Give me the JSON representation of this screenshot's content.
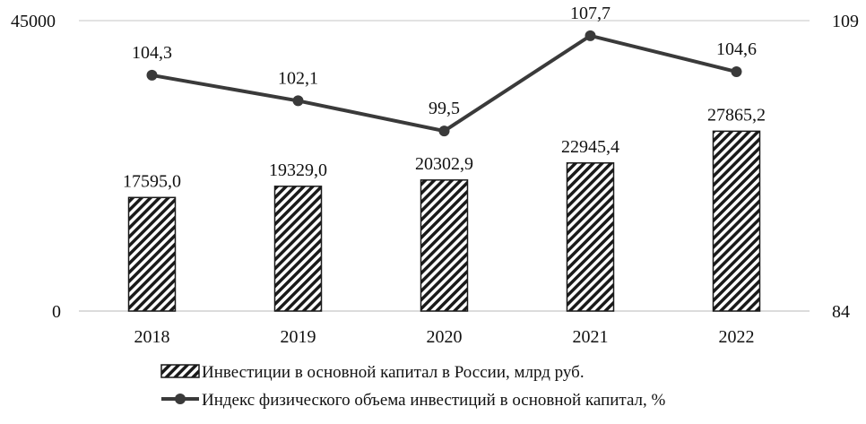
{
  "chart_data": {
    "type": "bar",
    "categories": [
      "2018",
      "2019",
      "2020",
      "2021",
      "2022"
    ],
    "series": [
      {
        "name": "Инвестиции в основной капитал в России, млрд руб.",
        "kind": "bar",
        "axis": "left",
        "values": [
          17595.0,
          19329.0,
          20302.9,
          22945.4,
          27865.2
        ],
        "labels": [
          "17595,0",
          "19329,0",
          "20302,9",
          "22945,4",
          "27865,2"
        ]
      },
      {
        "name": "Индекс физического объема инвестиций в основной капитал, %",
        "kind": "line",
        "axis": "right",
        "values": [
          104.3,
          102.1,
          99.5,
          107.7,
          104.6
        ],
        "labels": [
          "104,3",
          "102,1",
          "99,5",
          "107,7",
          "104,6"
        ]
      }
    ],
    "ylim_left": [
      0,
      45000
    ],
    "ylim_right": [
      84,
      109
    ],
    "left_ticks": [
      "0",
      "45000"
    ],
    "right_ticks": [
      "84",
      "109"
    ],
    "grid": false,
    "legend": "bottom",
    "colors": {
      "bar_hatch": "#1a1a1a",
      "line": "#3a3a3a",
      "axis": "#d0d0d0"
    }
  }
}
